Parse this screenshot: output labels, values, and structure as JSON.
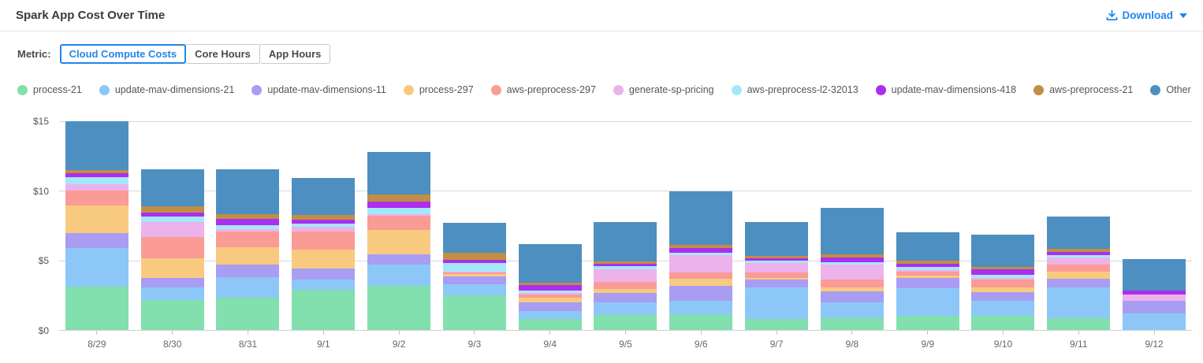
{
  "header": {
    "title": "Spark App Cost Over Time",
    "download_label": "Download"
  },
  "metric": {
    "label": "Metric:",
    "options": [
      {
        "label": "Cloud Compute Costs",
        "selected": true
      },
      {
        "label": "Core Hours",
        "selected": false
      },
      {
        "label": "App Hours",
        "selected": false
      }
    ]
  },
  "colors": {
    "accent_blue": "#2186eb",
    "link_blue": "#1e87ee"
  },
  "chart_data": {
    "type": "bar",
    "stacked": true,
    "grid": true,
    "legend_position": "top",
    "ylim": [
      0,
      15
    ],
    "yticks": [
      {
        "label": "$15",
        "pos": 0
      },
      {
        "label": "$10",
        "pos": 33.333
      },
      {
        "label": "$5",
        "pos": 66.667
      },
      {
        "label": "$0",
        "pos": 100
      }
    ],
    "categories": [
      "8/29",
      "8/30",
      "8/31",
      "9/1",
      "9/2",
      "9/3",
      "9/4",
      "9/5",
      "9/6",
      "9/7",
      "9/8",
      "9/9",
      "9/10",
      "9/11",
      "9/12"
    ],
    "series": [
      {
        "name": "process-21",
        "color": "#82DFAE",
        "values": [
          3.14,
          2.15,
          2.34,
          2.91,
          3.16,
          2.49,
          0.79,
          1.07,
          1.13,
          0.79,
          0.83,
          1.01,
          1.01,
          0.86,
          0.0
        ]
      },
      {
        "name": "update-mav-dimensions-21",
        "color": "#8CC7F8",
        "values": [
          2.75,
          0.89,
          1.48,
          0.69,
          1.52,
          0.77,
          0.56,
          0.93,
          0.99,
          2.27,
          1.17,
          2.02,
          1.11,
          2.2,
          1.17
        ]
      },
      {
        "name": "update-mav-dimensions-11",
        "color": "#A89DF2",
        "values": [
          1.05,
          0.67,
          0.86,
          0.79,
          0.77,
          0.6,
          0.65,
          0.65,
          1.04,
          0.54,
          0.8,
          0.72,
          0.6,
          0.61,
          0.91
        ]
      },
      {
        "name": "process-297",
        "color": "#F8CA80",
        "values": [
          2.03,
          1.44,
          1.29,
          1.37,
          1.75,
          0.16,
          0.3,
          0.32,
          0.51,
          0.15,
          0.26,
          0.17,
          0.34,
          0.5,
          0.0
        ]
      },
      {
        "name": "aws-preprocess-297",
        "color": "#FA9B96",
        "values": [
          1.05,
          1.54,
          1.12,
          1.29,
          1.02,
          0.12,
          0.23,
          0.51,
          0.44,
          0.36,
          0.54,
          0.28,
          0.57,
          0.51,
          0.0
        ]
      },
      {
        "name": "generate-sp-pricing",
        "color": "#ECB2EA",
        "values": [
          0.47,
          1.04,
          0.15,
          0.34,
          0.1,
          0.06,
          0.11,
          0.91,
          1.27,
          0.7,
          1.1,
          0.11,
          0.12,
          0.51,
          0.45
        ]
      },
      {
        "name": "aws-preprocess-l2-32013",
        "color": "#A5E7FA",
        "values": [
          0.5,
          0.44,
          0.3,
          0.27,
          0.43,
          0.61,
          0.19,
          0.19,
          0.19,
          0.19,
          0.15,
          0.23,
          0.21,
          0.19,
          0.0
        ]
      },
      {
        "name": "update-mav-dimensions-418",
        "color": "#AB2FEE",
        "values": [
          0.26,
          0.24,
          0.46,
          0.24,
          0.48,
          0.23,
          0.42,
          0.19,
          0.34,
          0.13,
          0.38,
          0.23,
          0.38,
          0.23,
          0.29
        ]
      },
      {
        "name": "aws-preprocess-21",
        "color": "#C28E44",
        "values": [
          0.27,
          0.46,
          0.35,
          0.38,
          0.53,
          0.53,
          0.15,
          0.17,
          0.21,
          0.21,
          0.22,
          0.23,
          0.2,
          0.21,
          0.0
        ]
      },
      {
        "name": "Other",
        "color": "#4D8FC0",
        "values": [
          3.48,
          2.67,
          3.19,
          2.66,
          3.02,
          2.13,
          2.76,
          2.83,
          3.83,
          2.43,
          3.34,
          2.05,
          2.34,
          2.36,
          2.27
        ]
      }
    ]
  }
}
